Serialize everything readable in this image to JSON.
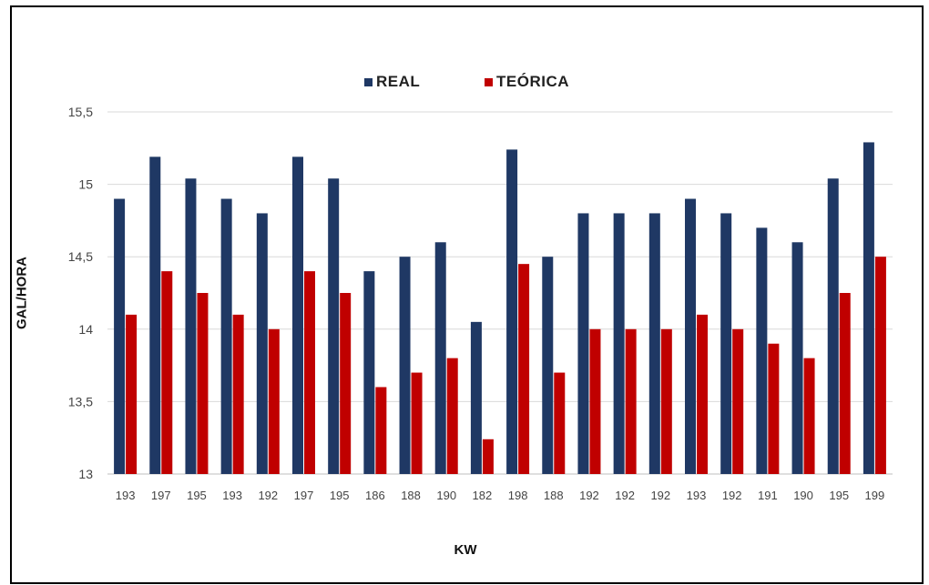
{
  "chart_data": {
    "type": "bar",
    "xlabel": "KW",
    "ylabel": "GAL/HORA",
    "ylim": [
      13,
      15.5
    ],
    "yticks": [
      "13",
      "13,5",
      "14",
      "14,5",
      "15",
      "15,5"
    ],
    "ytick_values": [
      13,
      13.5,
      14,
      14.5,
      15,
      15.5
    ],
    "grid": "horizontal",
    "legend_placement": "top-center",
    "categories": [
      "193",
      "197",
      "195",
      "193",
      "192",
      "197",
      "195",
      "186",
      "188",
      "190",
      "182",
      "198",
      "188",
      "192",
      "192",
      "192",
      "193",
      "192",
      "191",
      "190",
      "195",
      "199"
    ],
    "series": [
      {
        "name": "REAL",
        "color": "#1f3864",
        "values": [
          14.9,
          15.19,
          15.04,
          14.9,
          14.8,
          15.19,
          15.04,
          14.4,
          14.5,
          14.6,
          14.05,
          15.24,
          14.5,
          14.8,
          14.8,
          14.8,
          14.9,
          14.8,
          14.7,
          14.6,
          15.04,
          15.29
        ]
      },
      {
        "name": "TEÓRICA",
        "color": "#c00000",
        "values": [
          14.1,
          14.4,
          14.25,
          14.1,
          14.0,
          14.4,
          14.25,
          13.6,
          13.7,
          13.8,
          13.24,
          14.45,
          13.7,
          14.0,
          14.0,
          14.0,
          14.1,
          14.0,
          13.9,
          13.8,
          14.25,
          14.5
        ]
      }
    ]
  }
}
